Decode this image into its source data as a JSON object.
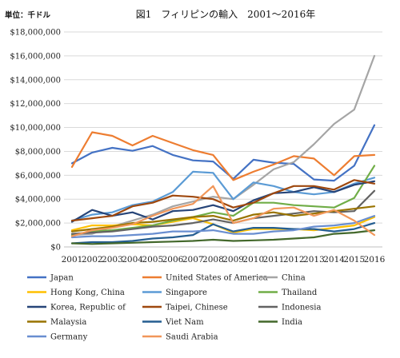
{
  "chart_data": {
    "type": "line",
    "title": "図1　フィリピンの輸入　2001～2016年",
    "unit_label": "単位：千ドル",
    "xlabel": "",
    "ylabel": "",
    "x": [
      "2001",
      "2002",
      "2003",
      "2004",
      "2005",
      "2006",
      "2007",
      "2008",
      "2009",
      "2010",
      "2011",
      "2012",
      "2013",
      "2014",
      "2015",
      "2016"
    ],
    "ylim": [
      0,
      18000000
    ],
    "y_ticks": [
      0,
      2000000,
      4000000,
      6000000,
      8000000,
      10000000,
      12000000,
      14000000,
      16000000,
      18000000
    ],
    "y_tick_labels": [
      "$0",
      "$2,000,000",
      "$4,000,000",
      "$6,000,000",
      "$8,000,000",
      "$10,000,000",
      "$12,000,000",
      "$14,000,000",
      "$16,000,000",
      "$18,000,000"
    ],
    "grid": true,
    "legend_position": "bottom",
    "series": [
      {
        "name": "Japan",
        "color": "#4472c4",
        "values": [
          7000000,
          7900000,
          8300000,
          8050000,
          8450000,
          7700000,
          7250000,
          7150000,
          5700000,
          7300000,
          7050000,
          6950000,
          5650000,
          5550000,
          6800000,
          10200000
        ]
      },
      {
        "name": "United States of America",
        "color": "#ed7d31",
        "values": [
          6700000,
          9600000,
          9300000,
          8500000,
          9300000,
          8700000,
          8100000,
          7700000,
          5600000,
          6300000,
          6900000,
          7600000,
          7400000,
          6000000,
          7600000,
          7700000
        ]
      },
      {
        "name": "China",
        "color": "#a5a5a5",
        "values": [
          1000000,
          1100000,
          1700000,
          2200000,
          2700000,
          3400000,
          3800000,
          4200000,
          4000000,
          5200000,
          6500000,
          7100000,
          8600000,
          10300000,
          11500000,
          16000000
        ]
      },
      {
        "name": "Hong Kong, China",
        "color": "#ffc000",
        "values": [
          1400000,
          1800000,
          1800000,
          1900000,
          1800000,
          2100000,
          2400000,
          1900000,
          1200000,
          1500000,
          1500000,
          1500000,
          1400000,
          1600000,
          1800000,
          2500000
        ]
      },
      {
        "name": "Singapore",
        "color": "#5b9bd5",
        "values": [
          2200000,
          2700000,
          2900000,
          3500000,
          3800000,
          4600000,
          6300000,
          6200000,
          4000000,
          5400000,
          5100000,
          4600000,
          4400000,
          4600000,
          5300000,
          5800000
        ]
      },
      {
        "name": "Thailand",
        "color": "#70ad47",
        "values": [
          1000000,
          1300000,
          1400000,
          1600000,
          1800000,
          2200000,
          2500000,
          2900000,
          2600000,
          3700000,
          3700000,
          3500000,
          3400000,
          3300000,
          4100000,
          6800000
        ]
      },
      {
        "name": "Korea, Republic of",
        "color": "#264478",
        "values": [
          2100000,
          3100000,
          2600000,
          2900000,
          2300000,
          3000000,
          3100000,
          3500000,
          3000000,
          3900000,
          4500000,
          4600000,
          5000000,
          4600000,
          5200000,
          5500000
        ]
      },
      {
        "name": "Taipei, Chinese",
        "color": "#9e480e",
        "values": [
          2200000,
          2400000,
          2600000,
          3400000,
          3700000,
          4300000,
          4200000,
          4000000,
          3300000,
          3700000,
          4500000,
          5100000,
          5100000,
          4800000,
          5600000,
          5300000
        ]
      },
      {
        "name": "Indonesia",
        "color": "#636363",
        "values": [
          1100000,
          1200000,
          1300000,
          1500000,
          1700000,
          1800000,
          2000000,
          2300000,
          2000000,
          2400000,
          2600000,
          2800000,
          3000000,
          2900000,
          3000000,
          4700000
        ]
      },
      {
        "name": "Malaysia",
        "color": "#997300",
        "values": [
          1300000,
          1500000,
          1700000,
          2000000,
          2100000,
          2300000,
          2500000,
          2600000,
          2200000,
          2700000,
          2900000,
          2600000,
          2800000,
          3000000,
          3200000,
          3400000
        ]
      },
      {
        "name": "Viet Nam",
        "color": "#255e91",
        "values": [
          300000,
          400000,
          400000,
          500000,
          700000,
          800000,
          1000000,
          1900000,
          1300000,
          1600000,
          1600000,
          1500000,
          1500000,
          1300000,
          1500000,
          2000000
        ]
      },
      {
        "name": "India",
        "color": "#43682b",
        "values": [
          300000,
          250000,
          300000,
          350000,
          400000,
          450000,
          500000,
          600000,
          500000,
          550000,
          600000,
          700000,
          800000,
          1100000,
          1200000,
          1400000
        ]
      },
      {
        "name": "Germany",
        "color": "#698ed0",
        "values": [
          800000,
          900000,
          900000,
          1000000,
          1100000,
          1300000,
          1300000,
          1400000,
          1100000,
          1100000,
          1300000,
          1400000,
          1700000,
          1800000,
          2000000,
          2600000
        ]
      },
      {
        "name": "Saudi Arabia",
        "color": "#f1975a",
        "values": [
          900000,
          1400000,
          1600000,
          1900000,
          2600000,
          3200000,
          3600000,
          5100000,
          2000000,
          2400000,
          3200000,
          3300000,
          2600000,
          3100000,
          2200000,
          1000000
        ]
      }
    ]
  }
}
